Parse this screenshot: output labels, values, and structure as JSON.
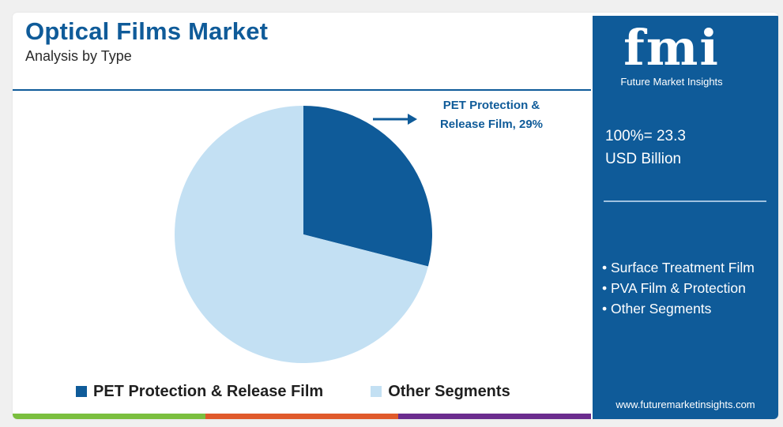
{
  "header": {
    "title": "Optical Films Market",
    "subtitle": "Analysis by Type"
  },
  "chart_data": {
    "type": "pie",
    "title": "Optical Films Market",
    "subtitle": "Analysis by Type",
    "slices": [
      {
        "label": "PET Protection & Release Film",
        "value": 29,
        "color": "#0f5b99"
      },
      {
        "label": "Other Segments",
        "value": 71,
        "color": "#c3e0f3"
      }
    ],
    "annotation": {
      "line1": "PET Protection &",
      "line2": "Release Film, 29%"
    },
    "legend": [
      "PET Protection & Release Film",
      "Other Segments"
    ],
    "legend_position": "bottom"
  },
  "side_panel": {
    "logo_text": "fmi",
    "logo_caption": "Future Market Insights",
    "total_line1": "100%= 23.3",
    "total_line2": "USD Billion",
    "segments": [
      "• Surface Treatment Film",
      "• PVA Film & Protection",
      "• Other Segments"
    ],
    "website": "www.futuremarketinsights.com"
  },
  "colors": {
    "brand": "#0f5b99",
    "light_slice": "#c3e0f3",
    "bottom_bar": [
      "#7bbf3f",
      "#e05a2b",
      "#6b2c8e"
    ]
  }
}
